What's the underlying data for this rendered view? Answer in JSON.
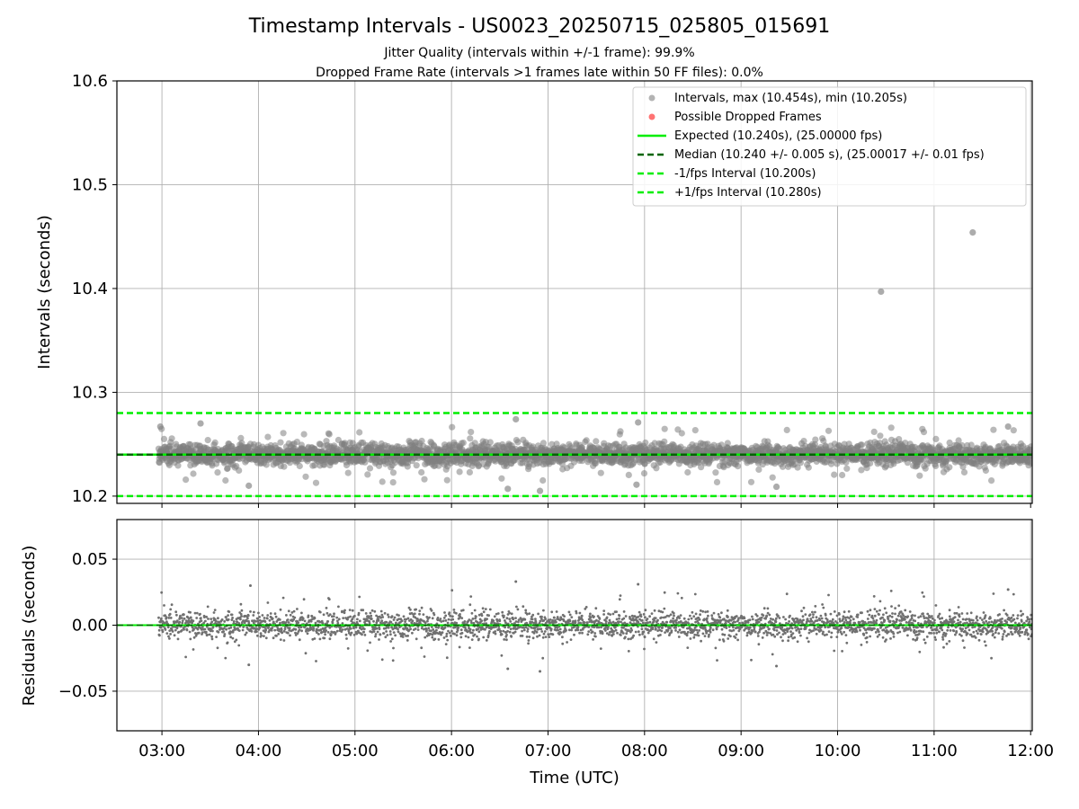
{
  "chart_data": [
    {
      "type": "scatter",
      "title": "Timestamp Intervals - US0023_20250715_025805_015691",
      "subtitle_lines": [
        "Jitter Quality (intervals within +/-1 frame): 99.9%",
        "Dropped Frame Rate (intervals >1 frames late within 50 FF files): 0.0%"
      ],
      "xlabel": "",
      "ylabel": "Intervals (seconds)",
      "x_axis": "time (UTC)",
      "xlim": [
        "02:32",
        "12:01"
      ],
      "ylim": [
        10.193,
        10.6
      ],
      "yticks": [
        "10.2",
        "10.3",
        "10.4",
        "10.5",
        "10.6"
      ],
      "grid": true,
      "legend_position": "top-right",
      "series": [
        {
          "name": "Intervals, max (10.454s), min (10.205s)",
          "kind": "points",
          "color": "#808080",
          "approx_count": 3000,
          "x_range": [
            "02:58",
            "12:01"
          ],
          "typical_value": 10.24,
          "typical_spread": 0.005,
          "points": [
            {
              "x": "10:27",
              "y": 10.397
            },
            {
              "x": "11:24",
              "y": 10.454
            },
            {
              "x": "06:55",
              "y": 10.205
            },
            {
              "x": "06:35",
              "y": 10.207
            },
            {
              "x": "09:22",
              "y": 10.209
            },
            {
              "x": "02:59",
              "y": 10.267
            },
            {
              "x": "03:24",
              "y": 10.27
            },
            {
              "x": "06:40",
              "y": 10.274
            },
            {
              "x": "07:56",
              "y": 10.271
            },
            {
              "x": "11:46",
              "y": 10.267
            },
            {
              "x": "03:54",
              "y": 10.21
            },
            {
              "x": "07:55",
              "y": 10.211
            }
          ]
        },
        {
          "name": "Possible Dropped Frames",
          "kind": "points",
          "color": "#ff5050",
          "points": []
        },
        {
          "name": "Expected (10.240s), (25.00000 fps)",
          "kind": "hline",
          "y": 10.24,
          "style": "solid",
          "color": "#00ee00"
        },
        {
          "name": "Median (10.240 +/- 0.005 s), (25.00017 +/- 0.01 fps)",
          "kind": "hline",
          "y": 10.24,
          "style": "dashed",
          "color": "#006400"
        },
        {
          "name": "-1/fps Interval (10.200s)",
          "kind": "hline",
          "y": 10.2,
          "style": "dashed",
          "color": "#00ee00"
        },
        {
          "name": "+1/fps Interval (10.280s)",
          "kind": "hline",
          "y": 10.28,
          "style": "dashed",
          "color": "#00ee00"
        }
      ]
    },
    {
      "type": "scatter",
      "xlabel": "Time (UTC)",
      "ylabel": "Residuals (seconds)",
      "xlim": [
        "02:32",
        "12:01"
      ],
      "ylim": [
        -0.08,
        0.08
      ],
      "yticks": [
        "0.05",
        "0.00",
        "−0.05"
      ],
      "xticks": [
        "03:00",
        "04:00",
        "05:00",
        "06:00",
        "07:00",
        "08:00",
        "09:00",
        "10:00",
        "11:00",
        "12:00"
      ],
      "grid": true,
      "series": [
        {
          "kind": "points",
          "color": "#707070",
          "approx_count": 3000,
          "x_range": [
            "02:58",
            "12:01"
          ],
          "typical_value": 0.0,
          "typical_spread": 0.005,
          "points": [
            {
              "x": "06:40",
              "y": 0.033
            },
            {
              "x": "07:56",
              "y": 0.031
            },
            {
              "x": "03:55",
              "y": 0.03
            },
            {
              "x": "06:55",
              "y": -0.035
            },
            {
              "x": "06:35",
              "y": -0.033
            },
            {
              "x": "09:22",
              "y": -0.031
            },
            {
              "x": "03:54",
              "y": -0.03
            },
            {
              "x": "11:46",
              "y": 0.027
            }
          ]
        },
        {
          "name": "zero",
          "kind": "hline",
          "y": 0.0,
          "style": "solid",
          "color": "#00ee00"
        }
      ]
    }
  ]
}
